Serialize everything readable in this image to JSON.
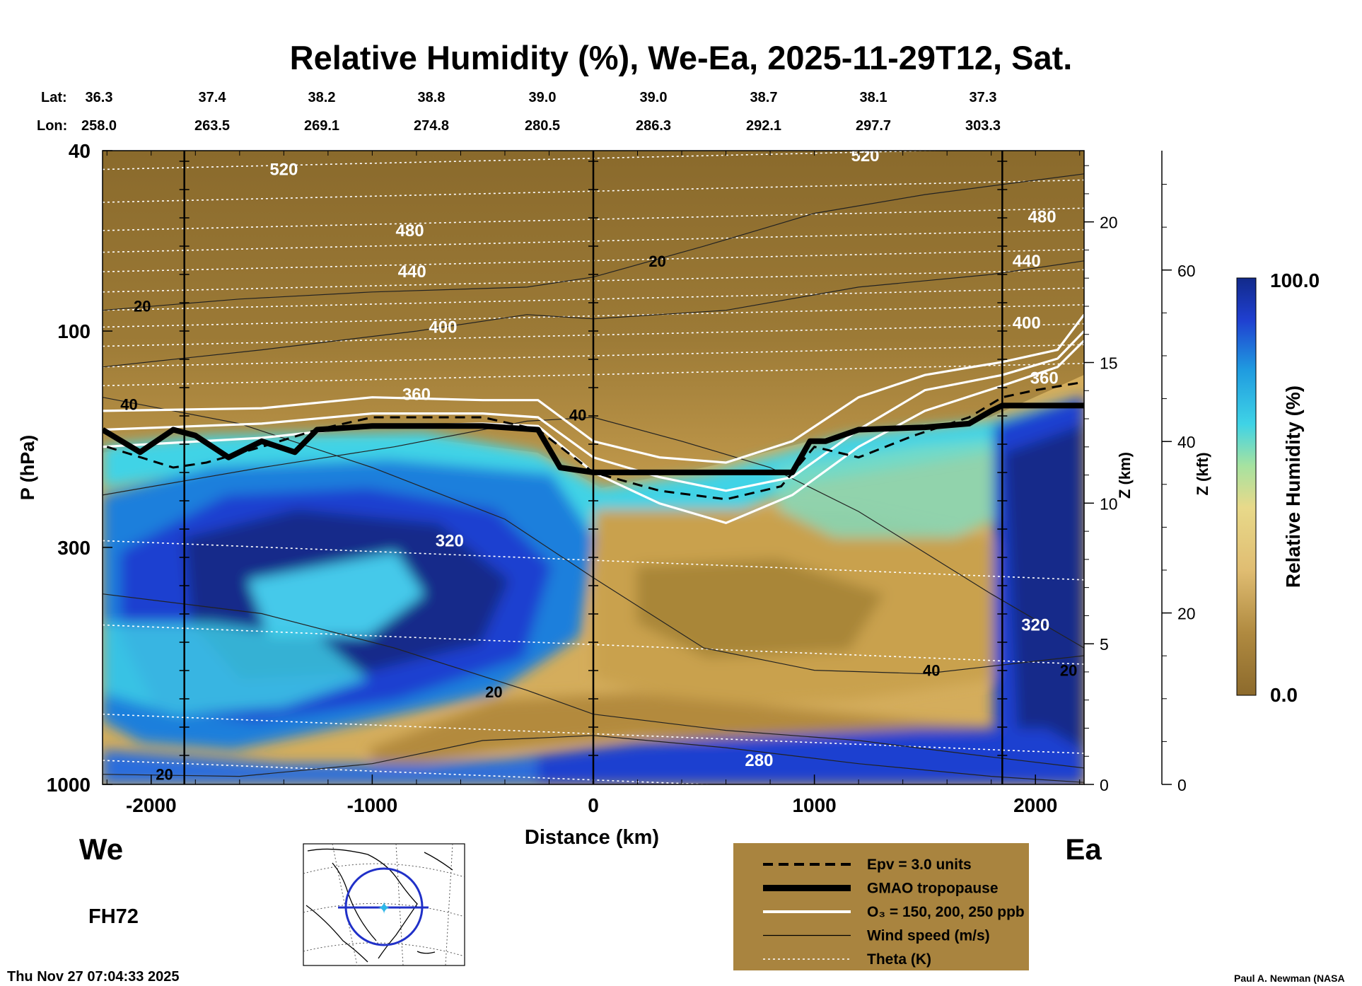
{
  "title": "Relative Humidity (%), We-Ea, 2025-11-29T12, Sat.",
  "lat_label": "Lat:",
  "lon_label": "Lon:",
  "lat_values": [
    "36.3",
    "37.4",
    "38.2",
    "38.8",
    "39.0",
    "39.0",
    "38.7",
    "38.1",
    "37.3"
  ],
  "lon_values": [
    "258.0",
    "263.5",
    "269.1",
    "274.8",
    "280.5",
    "286.3",
    "292.1",
    "297.7",
    "303.3"
  ],
  "left_end": "We",
  "right_end": "Ea",
  "forecast_hour": "FH72",
  "timestamp": "Thu Nov 27 07:04:33 2025",
  "credit": "Paul A. Newman (NASA",
  "colors": {
    "dry": "#8c6a2c",
    "mid_dry": "#c9a14e",
    "tan": "#e3c27a",
    "cyan": "#3fd3e6",
    "blue": "#1f3fd0",
    "navy": "#122a8a",
    "legend_bg": "#a9843f"
  },
  "chart_data": {
    "type": "heatmap",
    "title": "Relative Humidity (%), We-Ea, 2025-11-29T12, Sat.",
    "xlabel": "Distance (km)",
    "ylabel": "P (hPa)",
    "ylabel_right1": "Z (km)",
    "ylabel_right2": "Z (kft)",
    "xlim": [
      -2220,
      2220
    ],
    "ylim": [
      1000,
      40
    ],
    "y_scale": "log",
    "x_ticks": [
      -2000,
      -1000,
      0,
      1000,
      2000
    ],
    "x_tick_labels": [
      "-2000",
      "-1000",
      "0",
      "1000",
      "2000"
    ],
    "y_ticks": [
      40,
      100,
      300,
      1000
    ],
    "y_tick_labels": [
      "40",
      "100",
      "300",
      "1000"
    ],
    "z_km_ticks": [
      0,
      5,
      10,
      15,
      20
    ],
    "z_km_tick_labels": [
      "0",
      "5",
      "10",
      "15",
      "20"
    ],
    "z_kft_ticks": [
      0,
      20,
      40,
      60
    ],
    "z_kft_tick_labels": [
      "0",
      "20",
      "40",
      "60"
    ],
    "colorbar": {
      "label": "Relative Humidity (%)",
      "min": 0.0,
      "max": 100.0,
      "min_label": "0.0",
      "max_label": "100.0"
    },
    "vertical_lines_km": [
      -1850,
      0,
      1850
    ],
    "tropopause": {
      "x": [
        -2220,
        -2050,
        -1900,
        -1800,
        -1650,
        -1500,
        -1350,
        -1250,
        -1000,
        -500,
        -250,
        -150,
        0,
        500,
        900,
        980,
        1050,
        1200,
        1500,
        1700,
        1800,
        1850,
        2000,
        2220
      ],
      "p": [
        165,
        185,
        165,
        170,
        190,
        175,
        185,
        165,
        162,
        162,
        165,
        200,
        205,
        205,
        205,
        175,
        175,
        165,
        163,
        160,
        150,
        146,
        146,
        146
      ]
    },
    "epv_3pvu": {
      "x": [
        -2200,
        -1900,
        -1750,
        -1500,
        -1250,
        -1000,
        -500,
        -250,
        0,
        300,
        600,
        850,
        1000,
        1200,
        1450,
        1700,
        1850,
        2000,
        2200
      ],
      "p": [
        180,
        200,
        195,
        180,
        165,
        155,
        155,
        165,
        205,
        225,
        235,
        220,
        180,
        190,
        170,
        155,
        140,
        135,
        130
      ]
    },
    "ozone_contours": [
      {
        "label": "150 ppb",
        "x": [
          -2220,
          -1500,
          -1000,
          -500,
          -250,
          0,
          300,
          600,
          900,
          1200,
          1500,
          1850,
          2100,
          2220
        ],
        "p": [
          150,
          148,
          140,
          142,
          142,
          175,
          190,
          195,
          175,
          140,
          125,
          117,
          110,
          92
        ]
      },
      {
        "label": "200 ppb",
        "x": [
          -2220,
          -1500,
          -1000,
          -500,
          -250,
          0,
          300,
          600,
          900,
          1200,
          1500,
          1850,
          2100,
          2220
        ],
        "p": [
          165,
          160,
          152,
          152,
          155,
          190,
          210,
          225,
          210,
          165,
          135,
          125,
          115,
          100
        ]
      },
      {
        "label": "250 ppb",
        "x": [
          -2220,
          -1500,
          -1000,
          -500,
          -250,
          0,
          300,
          600,
          900,
          1200,
          1500,
          1850,
          2100,
          2220
        ],
        "p": [
          180,
          172,
          162,
          160,
          162,
          205,
          240,
          265,
          230,
          180,
          150,
          132,
          120,
          105
        ]
      }
    ],
    "theta_labels": [
      {
        "text": "520",
        "x": -1400,
        "p": 44
      },
      {
        "text": "520",
        "x": 1230,
        "p": 41
      },
      {
        "text": "480",
        "x": -830,
        "p": 60
      },
      {
        "text": "480",
        "x": 2030,
        "p": 56
      },
      {
        "text": "440",
        "x": -820,
        "p": 74
      },
      {
        "text": "440",
        "x": 1960,
        "p": 70
      },
      {
        "text": "400",
        "x": -680,
        "p": 98
      },
      {
        "text": "400",
        "x": 1960,
        "p": 96
      },
      {
        "text": "360",
        "x": -800,
        "p": 138
      },
      {
        "text": "360",
        "x": 2040,
        "p": 127
      },
      {
        "text": "320",
        "x": -650,
        "p": 290
      },
      {
        "text": "320",
        "x": 2000,
        "p": 445
      },
      {
        "text": "280",
        "x": 750,
        "p": 885
      }
    ],
    "wind_labels": [
      {
        "text": "20",
        "x": -2040,
        "p": 88
      },
      {
        "text": "20",
        "x": 290,
        "p": 70
      },
      {
        "text": "40",
        "x": -2100,
        "p": 145
      },
      {
        "text": "40",
        "x": -70,
        "p": 153
      },
      {
        "text": "20",
        "x": -450,
        "p": 625
      },
      {
        "text": "40",
        "x": 1530,
        "p": 560
      },
      {
        "text": "20",
        "x": 2150,
        "p": 560
      },
      {
        "text": "20",
        "x": -1940,
        "p": 950
      }
    ],
    "legend": {
      "entries": [
        {
          "label": "Epv = 3.0 units",
          "style": "dashed"
        },
        {
          "label": "GMAO tropopause",
          "style": "thick"
        },
        {
          "label": "O₃ = 150, 200, 250 ppb",
          "style": "white"
        },
        {
          "label": "Wind speed (m/s)",
          "style": "thin"
        },
        {
          "label": "Theta (K)",
          "style": "dotted"
        }
      ]
    },
    "grid": false
  }
}
